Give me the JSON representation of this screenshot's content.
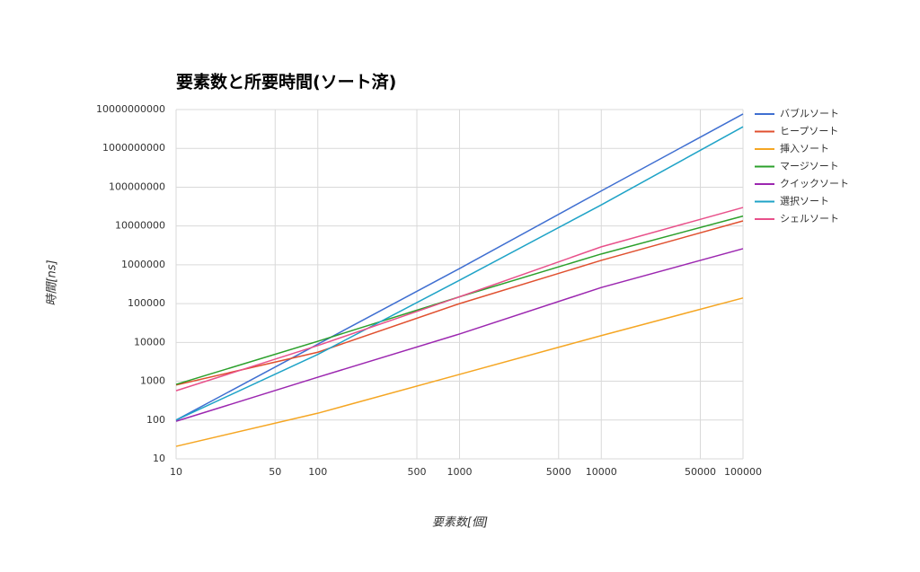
{
  "chart_data": {
    "type": "line",
    "title": "要素数と所要時間(ソート済)",
    "xlabel": "要素数[個]",
    "ylabel": "時間[ns]",
    "xscale": "log",
    "yscale": "log",
    "grid": true,
    "legend": "right",
    "x": [
      10,
      100,
      1000,
      10000,
      100000
    ],
    "xlim": [
      10,
      100000
    ],
    "xticks": [
      10,
      50,
      100,
      500,
      1000,
      5000,
      10000,
      50000,
      100000
    ],
    "ylim": [
      10,
      10000000000
    ],
    "yticks": [
      10,
      100,
      1000,
      10000,
      100000,
      1000000,
      10000000,
      100000000,
      1000000000,
      10000000000
    ],
    "series": [
      {
        "name": "バブルソート",
        "color": "#3f6fd1",
        "values": [
          100,
          9000,
          800000,
          80000000,
          7700000000
        ]
      },
      {
        "name": "ヒープソート",
        "color": "#e0502f",
        "values": [
          800,
          5600,
          100000,
          1300000,
          13500000
        ]
      },
      {
        "name": "挿入ソート",
        "color": "#f5a623",
        "values": [
          21,
          150,
          1500,
          15000,
          140000
        ]
      },
      {
        "name": "マージソート",
        "color": "#2ca02c",
        "values": [
          830,
          10700,
          150000,
          1900000,
          18000000
        ]
      },
      {
        "name": "クイックソート",
        "color": "#9c27b0",
        "values": [
          93,
          1270,
          16500,
          260000,
          2600000
        ]
      },
      {
        "name": "選択ソート",
        "color": "#1fa3c7",
        "values": [
          100,
          4900,
          400000,
          35000000,
          3600000000
        ]
      },
      {
        "name": "シェルソート",
        "color": "#e8508a",
        "values": [
          570,
          8300,
          150000,
          2900000,
          30000000
        ]
      }
    ]
  }
}
